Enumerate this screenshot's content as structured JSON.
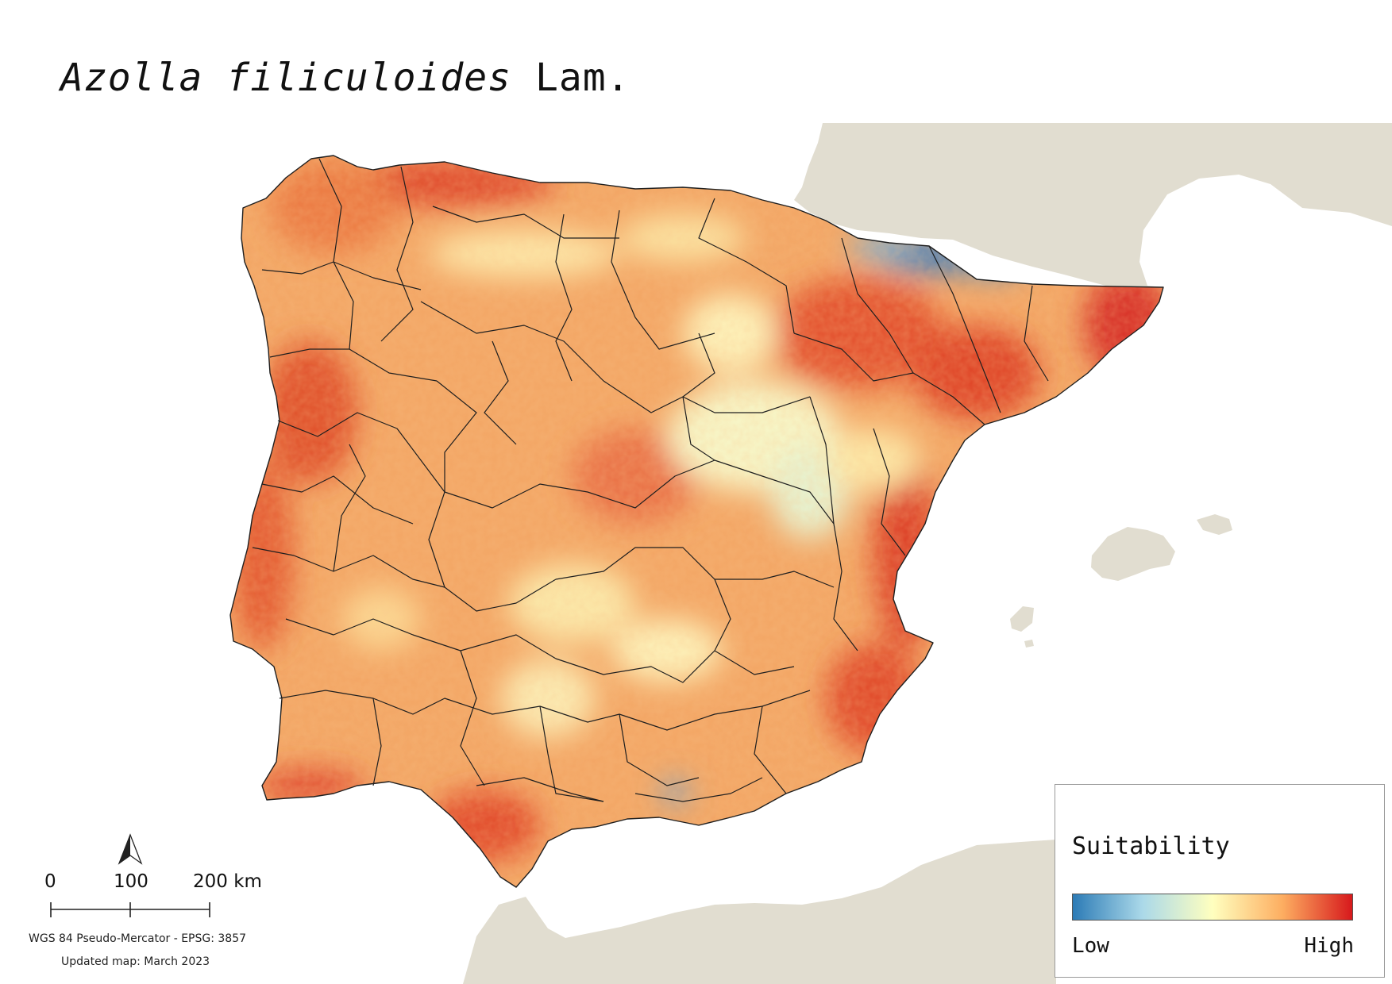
{
  "title": {
    "species": "Azolla filiculoides",
    "authority": "Lam."
  },
  "legend": {
    "title": "Suitability",
    "low_label": "Low",
    "high_label": "High",
    "ramp_colors": [
      "#2c7bb6",
      "#abd9e9",
      "#ffffbf",
      "#fdae61",
      "#d7191c"
    ]
  },
  "scale_bar": {
    "labels": [
      "0",
      "100",
      "200 km"
    ]
  },
  "crs_text": "WGS 84 Pseudo-Mercator  - EPSG: 3857",
  "updated_text": "Updated map: March 2023",
  "colors": {
    "background": "#ffffff",
    "neighbour_land": "#e1ddd0",
    "admin_borders": "#1f1f1f",
    "high_suitability": "#d7191c",
    "low_suitability": "#2c7bb6"
  },
  "icons": {
    "north_arrow": "north-arrow-icon"
  }
}
